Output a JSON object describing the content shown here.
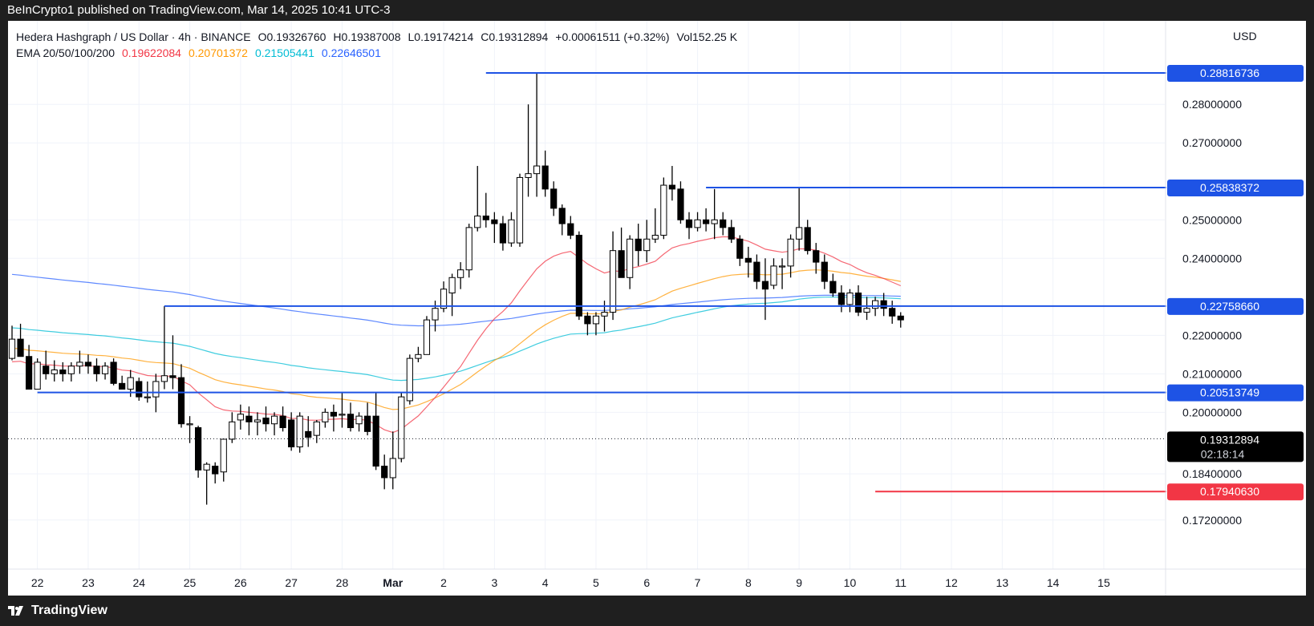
{
  "header": {
    "publisher": "BeInCrypto1 published on TradingView.com, Mar 14, 2025 10:41 UTC-3"
  },
  "legend": {
    "symbol": "Hedera Hashgraph / US Dollar · 4h · BINANCE",
    "open": "O0.19326760",
    "high": "H0.19387008",
    "low": "L0.19174214",
    "close": "C0.19312894",
    "change": "+0.00061511 (+0.32%)",
    "volume": "Vol152.25 K",
    "ema_label": "EMA 20/50/100/200",
    "ema20": "0.19622084",
    "ema50": "0.20701372",
    "ema100": "0.21505441",
    "ema200": "0.22646501"
  },
  "currency": "USD",
  "footer": {
    "brand": "TradingView"
  },
  "colors": {
    "ema20": "#f23645",
    "ema50": "#ff9800",
    "ema100": "#00bcd4",
    "ema200": "#2962ff",
    "level": "#1e53e5",
    "support": "#f23645",
    "candle_up": "#ffffff",
    "candle_down": "#000000"
  },
  "chart_data": {
    "type": "candlestick",
    "ylim": [
      0.1655,
      0.2915
    ],
    "y_ticks": [
      {
        "value": 0.28,
        "label": "0.28000000"
      },
      {
        "value": 0.27,
        "label": "0.27000000"
      },
      {
        "value": 0.25,
        "label": "0.25000000"
      },
      {
        "value": 0.24,
        "label": "0.24000000"
      },
      {
        "value": 0.22,
        "label": "0.22000000"
      },
      {
        "value": 0.21,
        "label": "0.21000000"
      },
      {
        "value": 0.2,
        "label": "0.20000000"
      },
      {
        "value": 0.184,
        "label": "0.18400000"
      },
      {
        "value": 0.172,
        "label": "0.17200000"
      }
    ],
    "x_ticks": [
      {
        "t": 3,
        "label": "22"
      },
      {
        "t": 9,
        "label": "23"
      },
      {
        "t": 15,
        "label": "24"
      },
      {
        "t": 21,
        "label": "25"
      },
      {
        "t": 27,
        "label": "26"
      },
      {
        "t": 33,
        "label": "27"
      },
      {
        "t": 39,
        "label": "28"
      },
      {
        "t": 45,
        "label": "Mar"
      },
      {
        "t": 51,
        "label": "2"
      },
      {
        "t": 57,
        "label": "3"
      },
      {
        "t": 63,
        "label": "4"
      },
      {
        "t": 69,
        "label": "5"
      },
      {
        "t": 75,
        "label": "6"
      },
      {
        "t": 81,
        "label": "7"
      },
      {
        "t": 87,
        "label": "8"
      },
      {
        "t": 93,
        "label": "9"
      },
      {
        "t": 99,
        "label": "10"
      },
      {
        "t": 105,
        "label": "11"
      },
      {
        "t": 111,
        "label": "12"
      },
      {
        "t": 117,
        "label": "13"
      },
      {
        "t": 123,
        "label": "14"
      },
      {
        "t": 129,
        "label": "15"
      }
    ],
    "levels": [
      {
        "value": 0.28816736,
        "label": "0.28816736",
        "from_t": 56,
        "kind": "resistance"
      },
      {
        "value": 0.25838372,
        "label": "0.25838372",
        "from_t": 82,
        "kind": "resistance"
      },
      {
        "value": 0.2275866,
        "label": "0.22758660",
        "from_t": 18,
        "kind": "resistance"
      },
      {
        "value": 0.20513749,
        "label": "0.20513749",
        "from_t": 3,
        "kind": "resistance"
      },
      {
        "value": 0.1794063,
        "label": "0.17940630",
        "from_t": 102,
        "kind": "support"
      }
    ],
    "last_price": {
      "value": 0.19312894,
      "label": "0.19312894",
      "countdown": "02:18:14"
    },
    "candles": [
      {
        "o": 0.214,
        "h": 0.2225,
        "l": 0.2135,
        "c": 0.219
      },
      {
        "o": 0.219,
        "h": 0.223,
        "l": 0.215,
        "c": 0.2145
      },
      {
        "o": 0.2145,
        "h": 0.2175,
        "l": 0.206,
        "c": 0.206
      },
      {
        "o": 0.206,
        "h": 0.214,
        "l": 0.206,
        "c": 0.213
      },
      {
        "o": 0.212,
        "h": 0.216,
        "l": 0.2085,
        "c": 0.21
      },
      {
        "o": 0.21,
        "h": 0.2135,
        "l": 0.208,
        "c": 0.211
      },
      {
        "o": 0.211,
        "h": 0.213,
        "l": 0.208,
        "c": 0.21
      },
      {
        "o": 0.21,
        "h": 0.213,
        "l": 0.208,
        "c": 0.212
      },
      {
        "o": 0.212,
        "h": 0.216,
        "l": 0.21,
        "c": 0.213
      },
      {
        "o": 0.213,
        "h": 0.215,
        "l": 0.21,
        "c": 0.212
      },
      {
        "o": 0.212,
        "h": 0.214,
        "l": 0.208,
        "c": 0.21
      },
      {
        "o": 0.21,
        "h": 0.213,
        "l": 0.2085,
        "c": 0.212
      },
      {
        "o": 0.213,
        "h": 0.214,
        "l": 0.207,
        "c": 0.2075
      },
      {
        "o": 0.2075,
        "h": 0.2095,
        "l": 0.206,
        "c": 0.206
      },
      {
        "o": 0.206,
        "h": 0.211,
        "l": 0.204,
        "c": 0.209
      },
      {
        "o": 0.208,
        "h": 0.209,
        "l": 0.203,
        "c": 0.204
      },
      {
        "o": 0.204,
        "h": 0.208,
        "l": 0.2025,
        "c": 0.204
      },
      {
        "o": 0.204,
        "h": 0.21,
        "l": 0.2,
        "c": 0.208
      },
      {
        "o": 0.208,
        "h": 0.2276,
        "l": 0.206,
        "c": 0.2095
      },
      {
        "o": 0.2095,
        "h": 0.22,
        "l": 0.206,
        "c": 0.209
      },
      {
        "o": 0.209,
        "h": 0.2125,
        "l": 0.196,
        "c": 0.197
      },
      {
        "o": 0.197,
        "h": 0.199,
        "l": 0.192,
        "c": 0.197
      },
      {
        "o": 0.196,
        "h": 0.1965,
        "l": 0.183,
        "c": 0.185
      },
      {
        "o": 0.185,
        "h": 0.187,
        "l": 0.176,
        "c": 0.1865
      },
      {
        "o": 0.186,
        "h": 0.187,
        "l": 0.1815,
        "c": 0.184
      },
      {
        "o": 0.1845,
        "h": 0.192,
        "l": 0.182,
        "c": 0.193
      },
      {
        "o": 0.193,
        "h": 0.2,
        "l": 0.192,
        "c": 0.1975
      },
      {
        "o": 0.198,
        "h": 0.202,
        "l": 0.1955,
        "c": 0.1995
      },
      {
        "o": 0.199,
        "h": 0.2015,
        "l": 0.194,
        "c": 0.1975
      },
      {
        "o": 0.1975,
        "h": 0.2,
        "l": 0.194,
        "c": 0.198
      },
      {
        "o": 0.1985,
        "h": 0.2015,
        "l": 0.195,
        "c": 0.197
      },
      {
        "o": 0.197,
        "h": 0.2,
        "l": 0.194,
        "c": 0.199
      },
      {
        "o": 0.199,
        "h": 0.2015,
        "l": 0.195,
        "c": 0.196
      },
      {
        "o": 0.198,
        "h": 0.2,
        "l": 0.19,
        "c": 0.191
      },
      {
        "o": 0.191,
        "h": 0.2,
        "l": 0.1895,
        "c": 0.199
      },
      {
        "o": 0.195,
        "h": 0.199,
        "l": 0.191,
        "c": 0.1935
      },
      {
        "o": 0.194,
        "h": 0.198,
        "l": 0.192,
        "c": 0.1975
      },
      {
        "o": 0.1975,
        "h": 0.201,
        "l": 0.196,
        "c": 0.2
      },
      {
        "o": 0.2,
        "h": 0.202,
        "l": 0.195,
        "c": 0.199
      },
      {
        "o": 0.1995,
        "h": 0.205,
        "l": 0.196,
        "c": 0.1995
      },
      {
        "o": 0.1995,
        "h": 0.2025,
        "l": 0.195,
        "c": 0.196
      },
      {
        "o": 0.197,
        "h": 0.2,
        "l": 0.195,
        "c": 0.199
      },
      {
        "o": 0.199,
        "h": 0.2025,
        "l": 0.194,
        "c": 0.195
      },
      {
        "o": 0.199,
        "h": 0.205,
        "l": 0.185,
        "c": 0.186
      },
      {
        "o": 0.186,
        "h": 0.189,
        "l": 0.18,
        "c": 0.183
      },
      {
        "o": 0.183,
        "h": 0.195,
        "l": 0.18,
        "c": 0.188
      },
      {
        "o": 0.188,
        "h": 0.205,
        "l": 0.187,
        "c": 0.204
      },
      {
        "o": 0.203,
        "h": 0.215,
        "l": 0.202,
        "c": 0.214
      },
      {
        "o": 0.214,
        "h": 0.217,
        "l": 0.213,
        "c": 0.215
      },
      {
        "o": 0.215,
        "h": 0.225,
        "l": 0.215,
        "c": 0.224
      },
      {
        "o": 0.224,
        "h": 0.229,
        "l": 0.221,
        "c": 0.227
      },
      {
        "o": 0.227,
        "h": 0.234,
        "l": 0.226,
        "c": 0.232
      },
      {
        "o": 0.231,
        "h": 0.236,
        "l": 0.225,
        "c": 0.235
      },
      {
        "o": 0.235,
        "h": 0.239,
        "l": 0.232,
        "c": 0.237
      },
      {
        "o": 0.237,
        "h": 0.249,
        "l": 0.235,
        "c": 0.248
      },
      {
        "o": 0.248,
        "h": 0.264,
        "l": 0.247,
        "c": 0.251
      },
      {
        "o": 0.251,
        "h": 0.257,
        "l": 0.248,
        "c": 0.25
      },
      {
        "o": 0.25,
        "h": 0.252,
        "l": 0.244,
        "c": 0.249
      },
      {
        "o": 0.249,
        "h": 0.251,
        "l": 0.242,
        "c": 0.244
      },
      {
        "o": 0.244,
        "h": 0.252,
        "l": 0.243,
        "c": 0.25
      },
      {
        "o": 0.244,
        "h": 0.262,
        "l": 0.243,
        "c": 0.261
      },
      {
        "o": 0.261,
        "h": 0.28,
        "l": 0.256,
        "c": 0.262
      },
      {
        "o": 0.262,
        "h": 0.2882,
        "l": 0.256,
        "c": 0.264
      },
      {
        "o": 0.264,
        "h": 0.268,
        "l": 0.256,
        "c": 0.258
      },
      {
        "o": 0.258,
        "h": 0.26,
        "l": 0.251,
        "c": 0.253
      },
      {
        "o": 0.253,
        "h": 0.254,
        "l": 0.246,
        "c": 0.249
      },
      {
        "o": 0.249,
        "h": 0.251,
        "l": 0.245,
        "c": 0.246
      },
      {
        "o": 0.246,
        "h": 0.247,
        "l": 0.224,
        "c": 0.225
      },
      {
        "o": 0.225,
        "h": 0.226,
        "l": 0.22,
        "c": 0.223
      },
      {
        "o": 0.223,
        "h": 0.226,
        "l": 0.22,
        "c": 0.225
      },
      {
        "o": 0.225,
        "h": 0.229,
        "l": 0.221,
        "c": 0.226
      },
      {
        "o": 0.226,
        "h": 0.247,
        "l": 0.224,
        "c": 0.242
      },
      {
        "o": 0.242,
        "h": 0.248,
        "l": 0.235,
        "c": 0.235
      },
      {
        "o": 0.235,
        "h": 0.246,
        "l": 0.232,
        "c": 0.245
      },
      {
        "o": 0.245,
        "h": 0.249,
        "l": 0.238,
        "c": 0.242
      },
      {
        "o": 0.242,
        "h": 0.25,
        "l": 0.239,
        "c": 0.245
      },
      {
        "o": 0.245,
        "h": 0.253,
        "l": 0.244,
        "c": 0.246
      },
      {
        "o": 0.246,
        "h": 0.261,
        "l": 0.245,
        "c": 0.259
      },
      {
        "o": 0.259,
        "h": 0.264,
        "l": 0.255,
        "c": 0.258
      },
      {
        "o": 0.258,
        "h": 0.26,
        "l": 0.249,
        "c": 0.25
      },
      {
        "o": 0.25,
        "h": 0.252,
        "l": 0.245,
        "c": 0.248
      },
      {
        "o": 0.248,
        "h": 0.252,
        "l": 0.247,
        "c": 0.25
      },
      {
        "o": 0.25,
        "h": 0.253,
        "l": 0.247,
        "c": 0.249
      },
      {
        "o": 0.249,
        "h": 0.258,
        "l": 0.245,
        "c": 0.25
      },
      {
        "o": 0.25,
        "h": 0.252,
        "l": 0.246,
        "c": 0.248
      },
      {
        "o": 0.248,
        "h": 0.25,
        "l": 0.244,
        "c": 0.245
      },
      {
        "o": 0.245,
        "h": 0.246,
        "l": 0.238,
        "c": 0.24
      },
      {
        "o": 0.24,
        "h": 0.243,
        "l": 0.235,
        "c": 0.239
      },
      {
        "o": 0.239,
        "h": 0.241,
        "l": 0.232,
        "c": 0.234
      },
      {
        "o": 0.234,
        "h": 0.24,
        "l": 0.224,
        "c": 0.232
      },
      {
        "o": 0.233,
        "h": 0.24,
        "l": 0.232,
        "c": 0.238
      },
      {
        "o": 0.238,
        "h": 0.24,
        "l": 0.232,
        "c": 0.238
      },
      {
        "o": 0.238,
        "h": 0.2462,
        "l": 0.235,
        "c": 0.245
      },
      {
        "o": 0.245,
        "h": 0.2585,
        "l": 0.242,
        "c": 0.248
      },
      {
        "o": 0.248,
        "h": 0.25,
        "l": 0.241,
        "c": 0.242
      },
      {
        "o": 0.242,
        "h": 0.244,
        "l": 0.236,
        "c": 0.239
      },
      {
        "o": 0.239,
        "h": 0.241,
        "l": 0.232,
        "c": 0.234
      },
      {
        "o": 0.234,
        "h": 0.236,
        "l": 0.23,
        "c": 0.231
      },
      {
        "o": 0.231,
        "h": 0.233,
        "l": 0.226,
        "c": 0.228
      },
      {
        "o": 0.228,
        "h": 0.232,
        "l": 0.226,
        "c": 0.231
      },
      {
        "o": 0.231,
        "h": 0.233,
        "l": 0.225,
        "c": 0.226
      },
      {
        "o": 0.226,
        "h": 0.23,
        "l": 0.224,
        "c": 0.227
      },
      {
        "o": 0.227,
        "h": 0.23,
        "l": 0.225,
        "c": 0.229
      },
      {
        "o": 0.229,
        "h": 0.231,
        "l": 0.225,
        "c": 0.227
      },
      {
        "o": 0.227,
        "h": 0.229,
        "l": 0.223,
        "c": 0.225
      },
      {
        "o": 0.225,
        "h": 0.226,
        "l": 0.222,
        "c": 0.224
      }
    ]
  }
}
